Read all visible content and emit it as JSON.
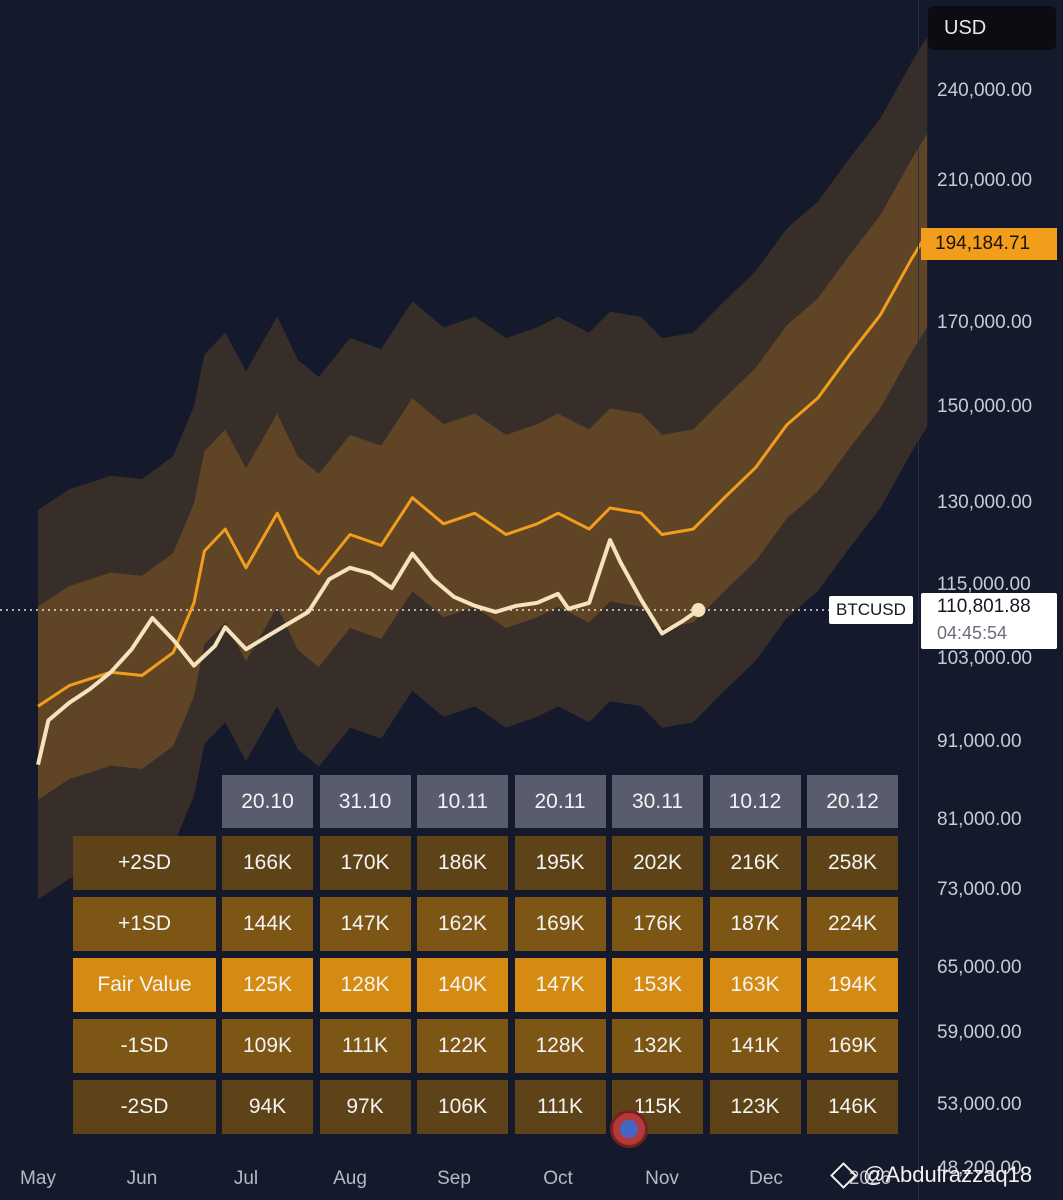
{
  "header": {
    "currency_button": "USD"
  },
  "price_scale": {
    "labels": [
      "240,000.00",
      "210,000.00",
      "170,000.00",
      "150,000.00",
      "130,000.00",
      "115,000.00",
      "103,000.00",
      "91,000.00",
      "81,000.00",
      "73,000.00",
      "65,000.00",
      "59,000.00",
      "53,000.00",
      "48,200.00"
    ],
    "fair_value_tag": "194,184.71",
    "current_symbol": "BTCUSD",
    "current_price": "110,801.88",
    "countdown": "04:45:54"
  },
  "colors": {
    "background": "#141a2b",
    "band_fill": "#f29d1c",
    "fair_value_line": "#f29d1c",
    "price_line": "#f6e2bc",
    "row_plus2": "#5e4318",
    "row_plus1": "#7d5615",
    "row_fair": "#d58b12",
    "row_minus1": "#7d5615",
    "row_minus2": "#5e4318"
  },
  "chart_data": {
    "type": "line",
    "title": "",
    "x_axis": {
      "tick_labels": [
        "May",
        "Jun",
        "Jul",
        "Aug",
        "Sep",
        "Oct",
        "Nov",
        "Dec",
        "2026"
      ]
    },
    "y_axis": {
      "scale": "log",
      "range": [
        46000,
        275000
      ]
    },
    "series": [
      {
        "name": "",
        "role": "fair value",
        "points": [
          [
            0,
            96000
          ],
          [
            0.3,
            99000
          ],
          [
            0.7,
            101000
          ],
          [
            1.0,
            100500
          ],
          [
            1.3,
            104000
          ],
          [
            1.5,
            112000
          ],
          [
            1.6,
            121000
          ],
          [
            1.8,
            125000
          ],
          [
            2.0,
            118000
          ],
          [
            2.3,
            128000
          ],
          [
            2.5,
            120000
          ],
          [
            2.7,
            117000
          ],
          [
            3.0,
            124000
          ],
          [
            3.3,
            122000
          ],
          [
            3.6,
            131000
          ],
          [
            3.9,
            126000
          ],
          [
            4.2,
            128000
          ],
          [
            4.5,
            124000
          ],
          [
            4.8,
            126000
          ],
          [
            5.0,
            128000
          ],
          [
            5.3,
            125000
          ],
          [
            5.5,
            129000
          ],
          [
            5.8,
            128000
          ],
          [
            6.0,
            124000
          ],
          [
            6.3,
            125000
          ],
          [
            6.6,
            131000
          ],
          [
            6.9,
            137000
          ],
          [
            7.2,
            146000
          ],
          [
            7.5,
            152000
          ],
          [
            7.8,
            162000
          ],
          [
            8.1,
            172000
          ],
          [
            8.4,
            187000
          ],
          [
            8.55,
            194185
          ]
        ]
      },
      {
        "name": "BTCUSD",
        "role": "price",
        "points": [
          [
            0,
            88000
          ],
          [
            0.1,
            94000
          ],
          [
            0.3,
            96500
          ],
          [
            0.5,
            98500
          ],
          [
            0.7,
            101000
          ],
          [
            0.9,
            104500
          ],
          [
            1.1,
            109500
          ],
          [
            1.3,
            106000
          ],
          [
            1.5,
            102000
          ],
          [
            1.7,
            105000
          ],
          [
            1.8,
            108000
          ],
          [
            2.0,
            104500
          ],
          [
            2.2,
            106500
          ],
          [
            2.4,
            108500
          ],
          [
            2.6,
            110500
          ],
          [
            2.8,
            116000
          ],
          [
            3.0,
            118000
          ],
          [
            3.2,
            117000
          ],
          [
            3.4,
            114500
          ],
          [
            3.6,
            120500
          ],
          [
            3.8,
            116000
          ],
          [
            4.0,
            113000
          ],
          [
            4.2,
            111500
          ],
          [
            4.4,
            110500
          ],
          [
            4.6,
            111500
          ],
          [
            4.8,
            112000
          ],
          [
            5.0,
            113500
          ],
          [
            5.1,
            111000
          ],
          [
            5.3,
            112000
          ],
          [
            5.5,
            123000
          ],
          [
            5.6,
            119000
          ],
          [
            5.8,
            112500
          ],
          [
            6.0,
            107000
          ],
          [
            6.2,
            109000
          ],
          [
            6.35,
            110802
          ]
        ]
      }
    ],
    "bands": [
      {
        "name": "",
        "role": "+/-2SD",
        "scale_up": 1.34,
        "scale_down": 0.75
      },
      {
        "name": "",
        "role": "+/-1SD",
        "scale_up": 1.16,
        "scale_down": 0.87
      }
    ],
    "table": {
      "columns": [
        "20.10",
        "31.10",
        "10.11",
        "20.11",
        "30.11",
        "10.12",
        "20.12"
      ],
      "rows": [
        {
          "label": "+2SD",
          "values": [
            "166K",
            "170K",
            "186K",
            "195K",
            "202K",
            "216K",
            "258K"
          ]
        },
        {
          "label": "+1SD",
          "values": [
            "144K",
            "147K",
            "162K",
            "169K",
            "176K",
            "187K",
            "224K"
          ]
        },
        {
          "label": "Fair Value",
          "values": [
            "125K",
            "128K",
            "140K",
            "147K",
            "153K",
            "163K",
            "194K"
          ]
        },
        {
          "label": "-1SD",
          "values": [
            "109K",
            "111K",
            "122K",
            "128K",
            "132K",
            "141K",
            "169K"
          ]
        },
        {
          "label": "-2SD",
          "values": [
            "94K",
            "97K",
            "106K",
            "111K",
            "115K",
            "123K",
            "146K"
          ]
        }
      ]
    }
  },
  "watermark": {
    "handle": "@Abdulrazzaq18"
  }
}
